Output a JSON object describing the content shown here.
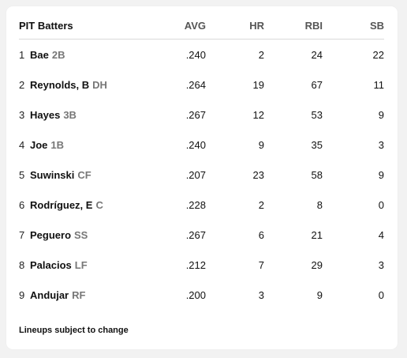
{
  "header": {
    "title": "PIT Batters",
    "columns": [
      "AVG",
      "HR",
      "RBI",
      "SB"
    ]
  },
  "players": [
    {
      "order": "1",
      "name": "Bae",
      "pos": "2B",
      "avg": ".240",
      "hr": "2",
      "rbi": "24",
      "sb": "22"
    },
    {
      "order": "2",
      "name": "Reynolds, B",
      "pos": "DH",
      "avg": ".264",
      "hr": "19",
      "rbi": "67",
      "sb": "11"
    },
    {
      "order": "3",
      "name": "Hayes",
      "pos": "3B",
      "avg": ".267",
      "hr": "12",
      "rbi": "53",
      "sb": "9"
    },
    {
      "order": "4",
      "name": "Joe",
      "pos": "1B",
      "avg": ".240",
      "hr": "9",
      "rbi": "35",
      "sb": "3"
    },
    {
      "order": "5",
      "name": "Suwinski",
      "pos": "CF",
      "avg": ".207",
      "hr": "23",
      "rbi": "58",
      "sb": "9"
    },
    {
      "order": "6",
      "name": "Rodríguez, E",
      "pos": "C",
      "avg": ".228",
      "hr": "2",
      "rbi": "8",
      "sb": "0"
    },
    {
      "order": "7",
      "name": "Peguero",
      "pos": "SS",
      "avg": ".267",
      "hr": "6",
      "rbi": "21",
      "sb": "4"
    },
    {
      "order": "8",
      "name": "Palacios",
      "pos": "LF",
      "avg": ".212",
      "hr": "7",
      "rbi": "29",
      "sb": "3"
    },
    {
      "order": "9",
      "name": "Andujar",
      "pos": "RF",
      "avg": ".200",
      "hr": "3",
      "rbi": "9",
      "sb": "0"
    }
  ],
  "footnote": "Lineups subject to change"
}
